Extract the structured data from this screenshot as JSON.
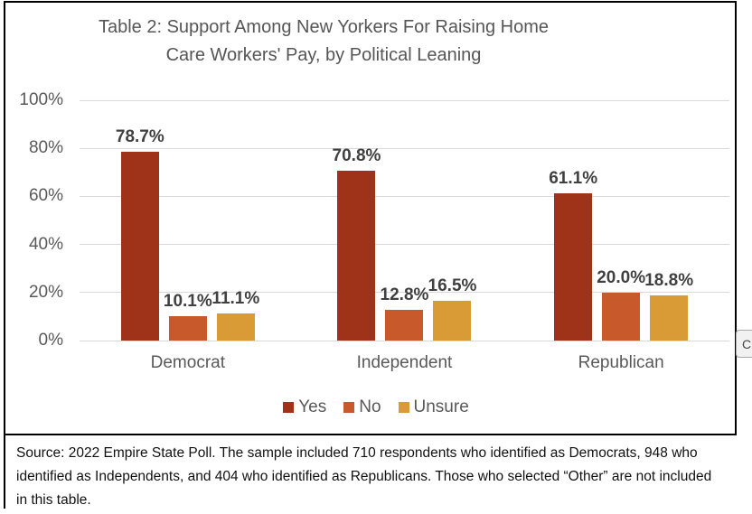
{
  "title": {
    "lines": [
      "Table 2: Support Among New Yorkers For Raising Home",
      "Care Workers' Pay, by Political Leaning"
    ]
  },
  "chart_data": {
    "type": "bar",
    "title": "Table 2: Support Among New Yorkers For Raising Home Care Workers' Pay, by Political Leaning",
    "categories": [
      "Democrat",
      "Independent",
      "Republican"
    ],
    "series": [
      {
        "name": "Yes",
        "color": "#9f3319",
        "values": [
          78.7,
          70.8,
          61.1
        ]
      },
      {
        "name": "No",
        "color": "#c8592b",
        "values": [
          10.1,
          12.8,
          20.0
        ]
      },
      {
        "name": "Unsure",
        "color": "#d89b35",
        "values": [
          11.1,
          16.5,
          18.8
        ]
      }
    ],
    "data_labels": [
      [
        "78.7%",
        "70.8%",
        "61.1%"
      ],
      [
        "10.1%",
        "12.8%",
        "20.0%"
      ],
      [
        "11.1%",
        "16.5%",
        "18.8%"
      ]
    ],
    "y_axis": {
      "min": 0,
      "max": 100,
      "tick_step": 20,
      "tick_labels": [
        "100%",
        "80%",
        "60%",
        "40%",
        "20%",
        "0%"
      ],
      "grid": true,
      "unit": "%"
    },
    "x_axis_labels": [
      "Democrat",
      "Independent",
      "Republican"
    ],
    "legend": {
      "position": "bottom",
      "entries": [
        "Yes",
        "No",
        "Unsure"
      ]
    }
  },
  "footer": {
    "lines": [
      "Source: 2022 Empire State Poll. The sample included 710 respondents who identified as Democrats, 948 who",
      "identified as Independents, and 404 who identified as Republicans. Those who selected “Other” are not included",
      "in this table."
    ]
  },
  "popup_fragment": {
    "label": "C"
  }
}
